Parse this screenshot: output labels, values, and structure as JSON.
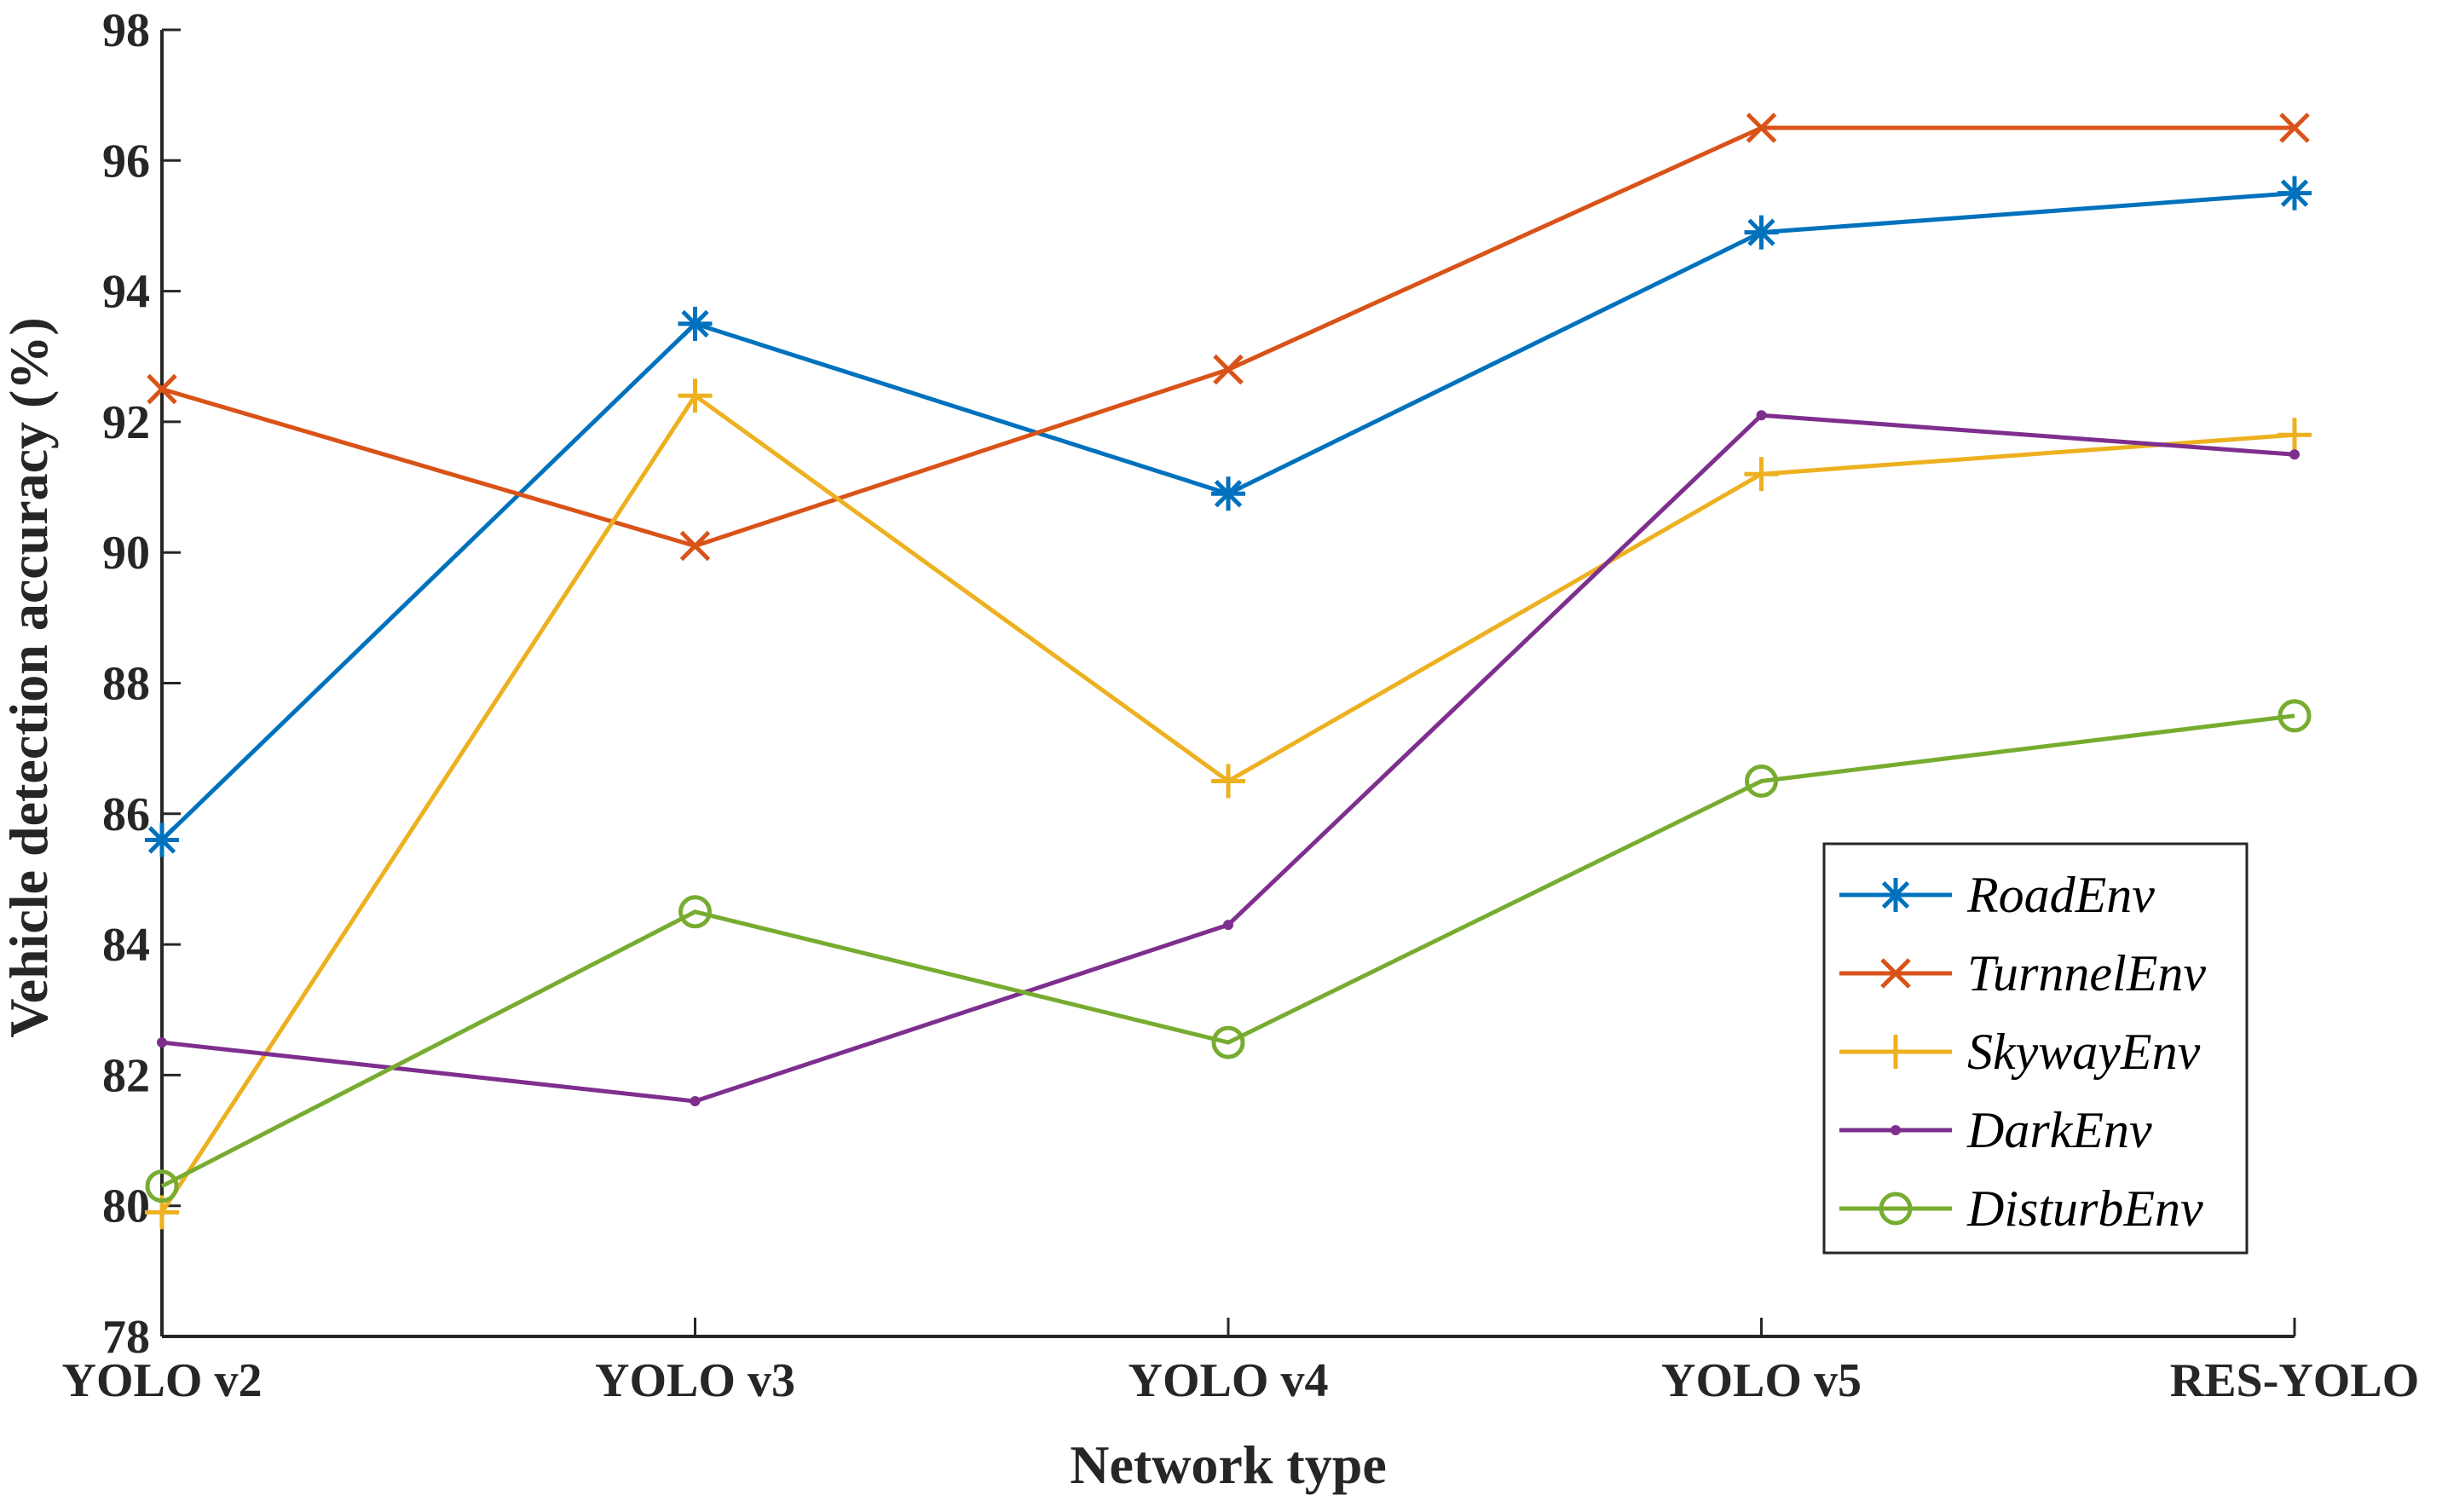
{
  "chart_data": {
    "type": "line",
    "title": "",
    "xlabel": "Network type",
    "ylabel": "Vehicle detection accuracy (%)",
    "categories": [
      "YOLO v2",
      "YOLO v3",
      "YOLO v4",
      "YOLO v5",
      "RES-YOLO"
    ],
    "ylim": [
      78,
      98
    ],
    "yticks": [
      78,
      80,
      82,
      84,
      86,
      88,
      90,
      92,
      94,
      96,
      98
    ],
    "grid": false,
    "legend_position": "bottom-right",
    "series": [
      {
        "name": "RoadEnv",
        "color": "#0072BD",
        "marker": "asterisk",
        "values": [
          85.6,
          93.5,
          90.9,
          94.9,
          95.5
        ]
      },
      {
        "name": "TurnnelEnv",
        "color": "#D95319",
        "marker": "x",
        "values": [
          92.5,
          90.1,
          92.8,
          96.5,
          96.5
        ]
      },
      {
        "name": "SkywayEnv",
        "color": "#EDB120",
        "marker": "plus",
        "values": [
          79.9,
          92.4,
          86.5,
          91.2,
          91.8
        ]
      },
      {
        "name": "DarkEnv",
        "color": "#7E2F8E",
        "marker": "dot",
        "values": [
          82.5,
          81.6,
          84.3,
          92.1,
          91.5
        ]
      },
      {
        "name": "DisturbEnv",
        "color": "#77AC30",
        "marker": "circle",
        "values": [
          80.3,
          84.5,
          82.5,
          86.5,
          87.5
        ]
      }
    ]
  }
}
